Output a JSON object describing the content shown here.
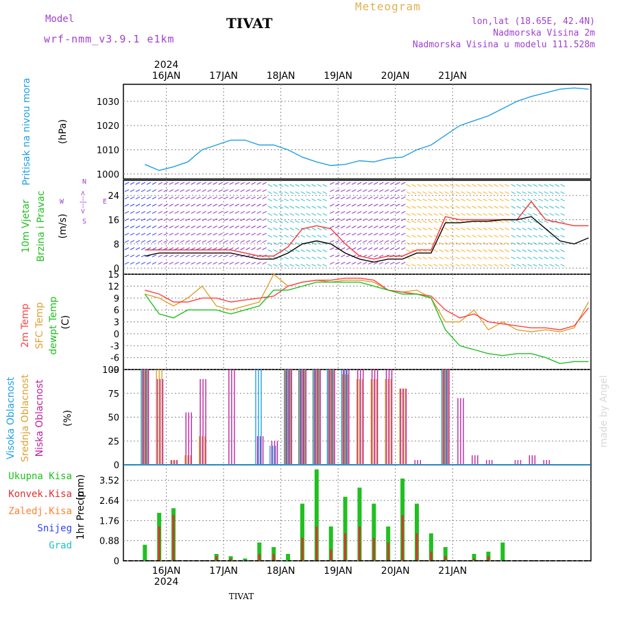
{
  "header": {
    "model_label": "Model",
    "model_name": "wrf-nmm_v3.9.1 e1km",
    "station": "TIVAT",
    "title": "Meteogram",
    "lonlat": "lon,lat (18.65E, 42.4N)",
    "height": "Nadmorska Visina 2m",
    "model_height": "Nadmorska Visina u modelu 111.528m"
  },
  "footer": {
    "station": "TIVAT"
  },
  "watermark": "made by Angel",
  "colors": {
    "pressure": "#1f9fe6",
    "wind_speed": "#000000",
    "gust": "#ff3030",
    "t2m": "#ff4040",
    "sfc": "#e0a030",
    "dew": "#20c020",
    "high_cloud": "#1f9fe6",
    "mid_cloud": "#e0a030",
    "low_cloud": "#c020a0",
    "total_precip": "#20c020",
    "conv_precip": "#e03030",
    "frozen": "#ff8030",
    "snow": "#3040ff",
    "hail": "#20c0c0",
    "purple_text": "#a040d0"
  },
  "chart_data": [
    {
      "type": "line",
      "title": "",
      "ylabel": "Pritisak na nivou mora",
      "unit": "(hPa)",
      "ylim": [
        998,
        1037
      ],
      "yticks": [
        "1000",
        "1010",
        "1020",
        "1030"
      ],
      "x_year": "2024",
      "x_ticks": [
        "16JAN",
        "17JAN",
        "18JAN",
        "19JAN",
        "20JAN",
        "21JAN"
      ],
      "x_hours": [
        0,
        6,
        12,
        18,
        24,
        30,
        36,
        42,
        48,
        54,
        60,
        66,
        72,
        78,
        84,
        90,
        96,
        102,
        108,
        114,
        120,
        126,
        132,
        138,
        144,
        150,
        156,
        162,
        168,
        174,
        180,
        186
      ],
      "series": [
        {
          "name": "Pritisak na nivou mora",
          "values": [
            1004,
            1001.5,
            1003,
            1005,
            1010,
            1012,
            1014,
            1014,
            1012,
            1012,
            1010,
            1007,
            1005,
            1003.5,
            1004,
            1005.5,
            1005,
            1006.5,
            1007,
            1010,
            1012,
            1016,
            1020,
            1022,
            1024,
            1027,
            1030,
            1032,
            1033.5,
            1035,
            1035.5,
            1035
          ]
        }
      ]
    },
    {
      "type": "line",
      "title": "",
      "ylabel": "10m Vjetar Brzina i Pravac",
      "unit": "(m/s)",
      "direction_legend": [
        "W",
        "<--|-->",
        "E",
        "S",
        "N"
      ],
      "ylim": [
        -2,
        29
      ],
      "yticks": [
        "0",
        "8",
        "16",
        "24"
      ],
      "series": [
        {
          "name": "Brzina",
          "values": [
            4,
            5,
            5,
            5,
            5,
            5,
            5,
            4,
            3,
            3,
            5,
            8,
            9,
            8,
            5,
            3,
            2,
            3,
            3,
            5,
            5,
            15,
            15,
            15.5,
            15.5,
            16,
            16,
            17,
            13,
            9,
            8,
            10
          ]
        },
        {
          "name": "Udar",
          "values": [
            6,
            6,
            6,
            6,
            6,
            6,
            6,
            5,
            4,
            4,
            7,
            13,
            14,
            13,
            8,
            4,
            3,
            4,
            4,
            6,
            6,
            17,
            16,
            16,
            16,
            16,
            16,
            22,
            16,
            15,
            14,
            14
          ]
        }
      ],
      "direction_bands": [
        {
          "from": 0,
          "to": 14,
          "direction": "N"
        },
        {
          "from": 14,
          "to": 60,
          "direction": "N"
        },
        {
          "from": 60,
          "to": 86,
          "direction": "S"
        },
        {
          "from": 86,
          "to": 118,
          "direction": "N"
        },
        {
          "from": 118,
          "to": 162,
          "direction": "S"
        },
        {
          "from": 162,
          "to": 186,
          "direction": "S"
        }
      ]
    },
    {
      "type": "line",
      "title": "",
      "ylabel": "2m Temp / SFC Temp / dewpt Temp",
      "unit": "(C)",
      "ylim": [
        -9,
        15
      ],
      "yticks": [
        "-9",
        "-6",
        "-3",
        "0",
        "3",
        "6",
        "9",
        "12",
        "15"
      ],
      "series": [
        {
          "name": "2m Temp",
          "values": [
            11,
            10,
            8,
            8,
            9,
            9,
            8,
            8.5,
            9,
            9.5,
            12,
            13,
            13.5,
            13.5,
            14,
            14,
            13.5,
            11,
            10.5,
            10,
            9.5,
            6,
            4,
            5,
            3,
            2.5,
            2,
            1.5,
            1.5,
            1,
            2,
            6.5
          ]
        },
        {
          "name": "SFC Temp",
          "values": [
            10,
            9,
            7,
            9,
            12,
            7,
            6,
            7,
            8,
            15,
            12,
            13,
            13.5,
            13,
            13.5,
            13.5,
            13,
            11,
            10.5,
            11,
            9,
            3,
            3,
            6,
            1,
            3,
            1,
            0.5,
            1,
            0.5,
            1.5,
            8
          ]
        },
        {
          "name": "dewpt Temp",
          "values": [
            10,
            5,
            4,
            6,
            6,
            6,
            5,
            6,
            7,
            11,
            11,
            12,
            13,
            13,
            13,
            13,
            12,
            11,
            10,
            10,
            9,
            1,
            -3,
            -4,
            -5,
            -5.5,
            -5,
            -5,
            -6,
            -7.5,
            -7,
            -7
          ]
        }
      ]
    },
    {
      "type": "bar",
      "title": "",
      "ylabel": "Visoka Oblacnost / Srednja Oblacnost / Niska Oblacnost",
      "unit": "(%)",
      "ylim": [
        0,
        100
      ],
      "yticks": [
        "0",
        "25",
        "50",
        "75",
        "100"
      ],
      "series": [
        {
          "name": "Visoka Oblacnost",
          "values": [
            100,
            0,
            0,
            0,
            0,
            0,
            0,
            0,
            100,
            20,
            100,
            100,
            100,
            100,
            100,
            0,
            0,
            0,
            0,
            0,
            0,
            100,
            0,
            0,
            0,
            0,
            0,
            0,
            0,
            0,
            0,
            0
          ]
        },
        {
          "name": "Srednja Oblacnost",
          "values": [
            100,
            100,
            5,
            10,
            30,
            0,
            0,
            0,
            0,
            0,
            100,
            100,
            100,
            100,
            95,
            90,
            90,
            90,
            80,
            0,
            0,
            100,
            0,
            0,
            0,
            0,
            0,
            0,
            0,
            0,
            0,
            0
          ]
        },
        {
          "name": "Niska Oblacnost",
          "values": [
            100,
            90,
            5,
            55,
            90,
            0,
            100,
            0,
            30,
            25,
            100,
            100,
            100,
            100,
            100,
            100,
            100,
            100,
            80,
            5,
            0,
            100,
            70,
            10,
            5,
            0,
            5,
            10,
            5,
            0,
            0,
            0
          ]
        }
      ]
    },
    {
      "type": "bar",
      "title": "",
      "ylabel": "1hr Precip",
      "unit": "(mm)",
      "ylim": [
        0,
        4.2
      ],
      "yticks": [
        "0",
        "0.88",
        "1.76",
        "2.64",
        "3.52"
      ],
      "legend": [
        "Ukupna Kisa",
        "Konvek.Kisa",
        "Zaledj.Kisa",
        "Snijeg",
        "Grad"
      ],
      "series": [
        {
          "name": "Ukupna Kisa",
          "values": [
            0.7,
            2.1,
            2.3,
            0,
            0,
            0.3,
            0.2,
            0.1,
            0.8,
            0.6,
            0.3,
            2.5,
            4.0,
            1.5,
            2.8,
            3.2,
            2.5,
            1.5,
            3.6,
            2.5,
            1.2,
            0.6,
            0,
            0.3,
            0.4,
            0.8,
            0,
            0,
            0,
            0,
            0,
            0
          ]
        },
        {
          "name": "Konvek.Kisa",
          "values": [
            0,
            1.5,
            2.0,
            0,
            0,
            0.2,
            0.1,
            0,
            0.3,
            0.3,
            0,
            1.0,
            1.5,
            0.5,
            1.2,
            1.5,
            1.0,
            0.8,
            2.0,
            1.2,
            0.4,
            0.2,
            0,
            0.1,
            0.2,
            0,
            0,
            0,
            0,
            0,
            0,
            0
          ]
        }
      ]
    }
  ],
  "left_labels": {
    "pressure": "Pritisak na nivou mora",
    "pressure_unit": "(hPa)",
    "wind1": "10m Vjetar",
    "wind2": "Brzina i Pravac",
    "wind_unit": "(m/s)",
    "temp1": "2m Temp",
    "temp2": "SFC Temp",
    "temp3": "dewpt Temp",
    "temp_unit": "(C)",
    "cloud1": "Visoka Oblacnost",
    "cloud2": "Srednja Oblacnost",
    "cloud3": "Niska Oblacnost",
    "cloud_unit": "(%)",
    "precip_label": "1hr Precip",
    "precip_unit": "(mm)"
  },
  "precip_legend": {
    "total": "Ukupna Kisa",
    "conv": "Konvek.Kisa",
    "frozen": "Zaledj.Kisa",
    "snow": "Snijeg",
    "hail": "Grad"
  }
}
